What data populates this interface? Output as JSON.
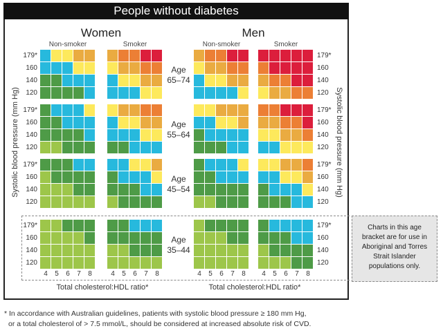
{
  "title": "People without diabetes",
  "sexes": [
    "Women",
    "Men"
  ],
  "smoking": [
    "Non-smoker",
    "Smoker"
  ],
  "y_axis_label": "Systolic blood pressure (mm Hg)",
  "x_axis_label": "Total cholesterol:HDL ratio*",
  "note": [
    "Charts in this age",
    "bracket are for use in",
    "Aboriginal and Torres",
    "Strait Islander",
    "populations only."
  ],
  "footnote": [
    "* In accordance with Australian guidelines, patients with systolic blood pressure ≥ 180 mm Hg,",
    "or a total cholesterol of > 7.5 mmol/L, should be considered at increased absolute risk of CVD."
  ],
  "chart_data": {
    "type": "heatmap",
    "title": "People without diabetes",
    "xlabel": "Total cholesterol:HDL ratio*",
    "ylabel": "Systolic blood pressure (mm Hg)",
    "x_ticks": [
      "4",
      "5",
      "6",
      "7",
      "8"
    ],
    "y_ticks": [
      "179*",
      "160",
      "140",
      "120"
    ],
    "color_levels": [
      "#9dc64a",
      "#4e9b47",
      "#27b9dd",
      "#fde95c",
      "#eaab41",
      "#ec7f35",
      "#dc1e3c"
    ],
    "panel_order": [
      "Women Non-smoker",
      "Women Smoker",
      "Men Non-smoker",
      "Men Smoker"
    ],
    "age_groups": [
      {
        "label_line1": "Age",
        "label_line2": "65–74",
        "panels": [
          [
            [
              2,
              3,
              3,
              4,
              4
            ],
            [
              2,
              2,
              2,
              3,
              3
            ],
            [
              1,
              1,
              2,
              2,
              2
            ],
            [
              1,
              1,
              1,
              1,
              2
            ]
          ],
          [
            [
              4,
              5,
              5,
              6,
              6
            ],
            [
              3,
              4,
              4,
              5,
              5
            ],
            [
              2,
              3,
              3,
              4,
              4
            ],
            [
              2,
              2,
              2,
              3,
              3
            ]
          ],
          [
            [
              4,
              5,
              5,
              6,
              6
            ],
            [
              3,
              4,
              4,
              5,
              5
            ],
            [
              2,
              3,
              3,
              4,
              4
            ],
            [
              2,
              2,
              2,
              2,
              3
            ]
          ],
          [
            [
              6,
              6,
              6,
              6,
              6
            ],
            [
              5,
              6,
              6,
              6,
              6
            ],
            [
              4,
              5,
              5,
              6,
              6
            ],
            [
              3,
              4,
              4,
              5,
              5
            ]
          ]
        ]
      },
      {
        "label_line1": "Age",
        "label_line2": "55–64",
        "panels": [
          [
            [
              1,
              2,
              2,
              2,
              3
            ],
            [
              1,
              1,
              2,
              2,
              2
            ],
            [
              1,
              1,
              1,
              1,
              2
            ],
            [
              0,
              0,
              1,
              1,
              1
            ]
          ],
          [
            [
              3,
              4,
              4,
              5,
              5
            ],
            [
              2,
              3,
              3,
              4,
              4
            ],
            [
              2,
              2,
              2,
              3,
              3
            ],
            [
              1,
              1,
              2,
              2,
              2
            ]
          ],
          [
            [
              3,
              3,
              4,
              4,
              4
            ],
            [
              2,
              2,
              3,
              3,
              4
            ],
            [
              1,
              2,
              2,
              2,
              2
            ],
            [
              1,
              1,
              1,
              2,
              2
            ]
          ],
          [
            [
              5,
              5,
              6,
              6,
              6
            ],
            [
              4,
              4,
              5,
              5,
              6
            ],
            [
              3,
              3,
              4,
              4,
              5
            ],
            [
              2,
              2,
              3,
              3,
              3
            ]
          ]
        ]
      },
      {
        "label_line1": "Age",
        "label_line2": "45–54",
        "panels": [
          [
            [
              1,
              1,
              1,
              2,
              2
            ],
            [
              0,
              1,
              1,
              1,
              1
            ],
            [
              0,
              0,
              0,
              1,
              1
            ],
            [
              0,
              0,
              0,
              0,
              0
            ]
          ],
          [
            [
              2,
              2,
              3,
              3,
              4
            ],
            [
              1,
              2,
              2,
              2,
              3
            ],
            [
              1,
              1,
              1,
              2,
              2
            ],
            [
              0,
              1,
              1,
              1,
              1
            ]
          ],
          [
            [
              1,
              2,
              2,
              2,
              3
            ],
            [
              1,
              1,
              2,
              2,
              2
            ],
            [
              1,
              1,
              1,
              1,
              1
            ],
            [
              0,
              0,
              1,
              1,
              1
            ]
          ],
          [
            [
              3,
              3,
              4,
              4,
              5
            ],
            [
              2,
              2,
              3,
              3,
              4
            ],
            [
              1,
              2,
              2,
              2,
              3
            ],
            [
              1,
              1,
              1,
              2,
              2
            ]
          ]
        ]
      },
      {
        "label_line1": "Age",
        "label_line2": "35–44",
        "panels": [
          [
            [
              0,
              0,
              1,
              1,
              1
            ],
            [
              0,
              0,
              0,
              0,
              1
            ],
            [
              0,
              0,
              0,
              0,
              0
            ],
            [
              0,
              0,
              0,
              0,
              0
            ]
          ],
          [
            [
              1,
              1,
              2,
              2,
              2
            ],
            [
              1,
              1,
              1,
              1,
              1
            ],
            [
              0,
              0,
              1,
              1,
              1
            ],
            [
              0,
              0,
              0,
              0,
              0
            ]
          ],
          [
            [
              0,
              1,
              1,
              1,
              1
            ],
            [
              0,
              0,
              0,
              1,
              1
            ],
            [
              0,
              0,
              0,
              0,
              0
            ],
            [
              0,
              0,
              0,
              0,
              0
            ]
          ],
          [
            [
              1,
              2,
              2,
              2,
              2
            ],
            [
              1,
              1,
              1,
              2,
              2
            ],
            [
              0,
              1,
              1,
              1,
              1
            ],
            [
              0,
              0,
              0,
              1,
              1
            ]
          ]
        ]
      }
    ]
  }
}
